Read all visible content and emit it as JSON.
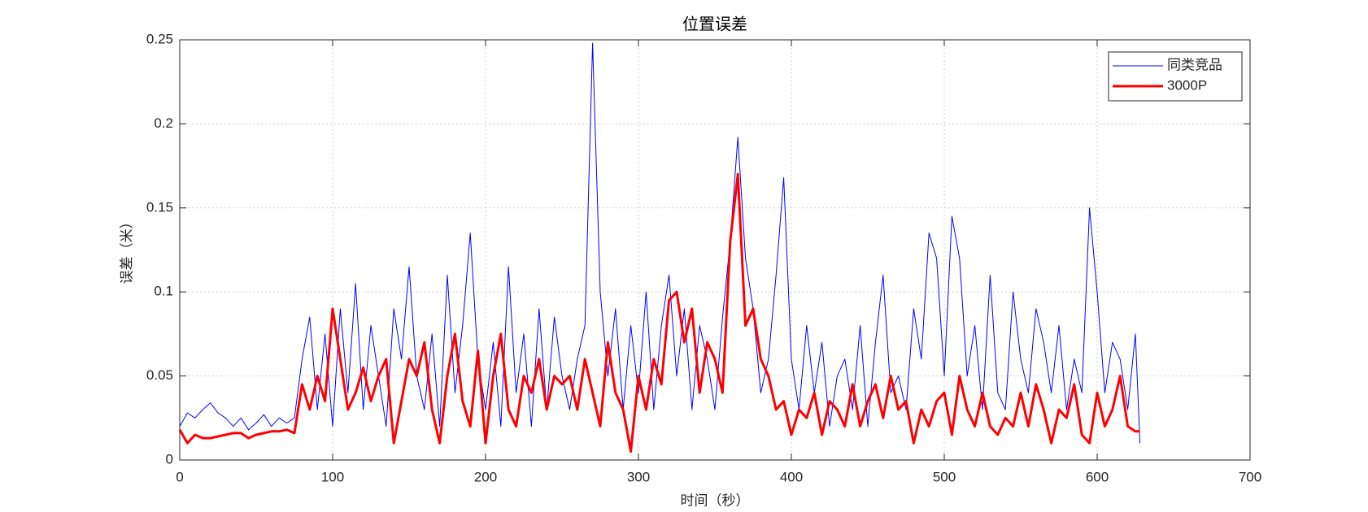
{
  "chart_data": {
    "type": "line",
    "title": "位置误差",
    "xlabel": "时间（秒）",
    "ylabel": "误差（米）",
    "x": [
      0,
      5,
      10,
      15,
      20,
      25,
      30,
      35,
      40,
      45,
      50,
      55,
      60,
      65,
      70,
      75,
      80,
      85,
      90,
      95,
      100,
      105,
      110,
      115,
      120,
      125,
      130,
      135,
      140,
      145,
      150,
      155,
      160,
      165,
      170,
      175,
      180,
      185,
      190,
      195,
      200,
      205,
      210,
      215,
      220,
      225,
      230,
      235,
      240,
      245,
      250,
      255,
      260,
      265,
      270,
      275,
      280,
      285,
      290,
      295,
      300,
      305,
      310,
      315,
      320,
      325,
      330,
      335,
      340,
      345,
      350,
      355,
      360,
      365,
      370,
      375,
      380,
      385,
      390,
      395,
      400,
      405,
      410,
      415,
      420,
      425,
      430,
      435,
      440,
      445,
      450,
      455,
      460,
      465,
      470,
      475,
      480,
      485,
      490,
      495,
      500,
      505,
      510,
      515,
      520,
      525,
      530,
      535,
      540,
      545,
      550,
      555,
      560,
      565,
      570,
      575,
      580,
      585,
      590,
      595,
      600,
      605,
      610,
      615,
      620,
      625,
      628
    ],
    "series": [
      {
        "name": "同类竞品",
        "color": "#0000ff",
        "width": 1,
        "values": [
          0.02,
          0.028,
          0.025,
          0.03,
          0.034,
          0.028,
          0.025,
          0.02,
          0.025,
          0.018,
          0.022,
          0.027,
          0.02,
          0.025,
          0.022,
          0.025,
          0.06,
          0.085,
          0.03,
          0.075,
          0.02,
          0.09,
          0.04,
          0.105,
          0.03,
          0.08,
          0.05,
          0.02,
          0.09,
          0.06,
          0.115,
          0.05,
          0.03,
          0.075,
          0.02,
          0.11,
          0.04,
          0.08,
          0.135,
          0.06,
          0.03,
          0.07,
          0.02,
          0.115,
          0.04,
          0.075,
          0.02,
          0.09,
          0.03,
          0.085,
          0.05,
          0.03,
          0.06,
          0.08,
          0.248,
          0.1,
          0.05,
          0.09,
          0.03,
          0.08,
          0.04,
          0.1,
          0.03,
          0.08,
          0.11,
          0.05,
          0.09,
          0.03,
          0.08,
          0.06,
          0.03,
          0.085,
          0.13,
          0.192,
          0.12,
          0.09,
          0.04,
          0.06,
          0.11,
          0.168,
          0.06,
          0.03,
          0.08,
          0.04,
          0.07,
          0.02,
          0.05,
          0.06,
          0.03,
          0.08,
          0.02,
          0.07,
          0.11,
          0.04,
          0.05,
          0.03,
          0.09,
          0.06,
          0.135,
          0.12,
          0.05,
          0.145,
          0.12,
          0.05,
          0.08,
          0.03,
          0.11,
          0.04,
          0.03,
          0.1,
          0.06,
          0.04,
          0.09,
          0.07,
          0.04,
          0.08,
          0.03,
          0.06,
          0.04,
          0.15,
          0.1,
          0.04,
          0.07,
          0.06,
          0.03,
          0.075,
          0.01
        ]
      },
      {
        "name": "3000P",
        "color": "#ff0000",
        "width": 3,
        "values": [
          0.018,
          0.01,
          0.015,
          0.013,
          0.013,
          0.014,
          0.015,
          0.016,
          0.016,
          0.013,
          0.015,
          0.016,
          0.017,
          0.017,
          0.018,
          0.016,
          0.045,
          0.03,
          0.05,
          0.035,
          0.09,
          0.06,
          0.03,
          0.04,
          0.055,
          0.035,
          0.05,
          0.06,
          0.01,
          0.035,
          0.06,
          0.05,
          0.07,
          0.03,
          0.01,
          0.05,
          0.075,
          0.035,
          0.02,
          0.065,
          0.01,
          0.05,
          0.075,
          0.03,
          0.02,
          0.05,
          0.04,
          0.06,
          0.03,
          0.05,
          0.045,
          0.05,
          0.03,
          0.06,
          0.04,
          0.02,
          0.07,
          0.04,
          0.03,
          0.005,
          0.05,
          0.03,
          0.06,
          0.045,
          0.095,
          0.1,
          0.07,
          0.09,
          0.04,
          0.07,
          0.06,
          0.04,
          0.13,
          0.17,
          0.08,
          0.09,
          0.06,
          0.05,
          0.03,
          0.035,
          0.015,
          0.03,
          0.025,
          0.04,
          0.015,
          0.035,
          0.03,
          0.02,
          0.045,
          0.02,
          0.035,
          0.045,
          0.025,
          0.05,
          0.03,
          0.035,
          0.01,
          0.03,
          0.02,
          0.035,
          0.04,
          0.015,
          0.05,
          0.03,
          0.02,
          0.04,
          0.02,
          0.015,
          0.025,
          0.02,
          0.04,
          0.02,
          0.045,
          0.03,
          0.01,
          0.03,
          0.025,
          0.045,
          0.015,
          0.01,
          0.04,
          0.02,
          0.03,
          0.05,
          0.02,
          0.017,
          0.017
        ]
      }
    ],
    "xlim": [
      0,
      700
    ],
    "xticks": [
      0,
      100,
      200,
      300,
      400,
      500,
      600,
      700
    ],
    "ylim": [
      0,
      0.25
    ],
    "yticks": [
      0,
      0.05,
      0.1,
      0.15,
      0.2,
      0.25
    ],
    "grid": true,
    "legend": "upper right"
  }
}
